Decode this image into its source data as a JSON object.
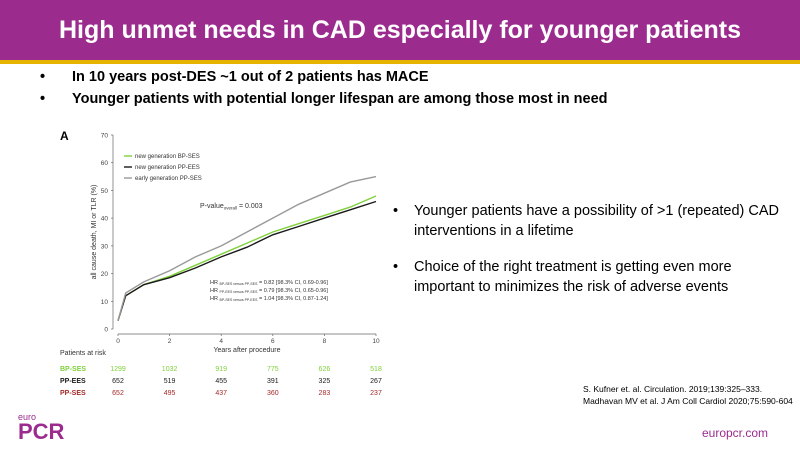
{
  "header": {
    "title": "High unmet needs  in CAD especially for younger patients"
  },
  "top_bullets": [
    "In 10 years post-DES ~1 out of 2 patients has MACE",
    "Younger patients with potential longer lifespan are among those most in need"
  ],
  "right_bullets": [
    "Younger patients have a possibility of >1 (repeated) CAD interventions in a lifetime",
    "Choice of the right treatment is getting even more important to minimizes the risk of adverse events"
  ],
  "bullet_glyph": "•",
  "chart_data": {
    "type": "line",
    "panel_label": "A",
    "xlabel": "Years after procedure",
    "ylabel": "all cause death, MI or TLR (%)",
    "x": [
      0,
      0.3,
      1,
      2,
      3,
      4,
      5,
      6,
      7,
      8,
      9,
      10
    ],
    "xlim": [
      0,
      10
    ],
    "ylim": [
      0,
      70
    ],
    "xticks": [
      0,
      2,
      4,
      6,
      8,
      10
    ],
    "yticks": [
      0,
      10,
      20,
      30,
      40,
      50,
      60,
      70
    ],
    "legend_position": "top-left",
    "series": [
      {
        "name": "new generation BP-SES",
        "color": "#7fd13b",
        "values": [
          3,
          12,
          16,
          19,
          23,
          27,
          31,
          35,
          38,
          41,
          44,
          48
        ]
      },
      {
        "name": "new generation PP-EES",
        "color": "#1a1a1a",
        "values": [
          3,
          12,
          16,
          18.5,
          22,
          26,
          29.5,
          34,
          37,
          40,
          43,
          46
        ]
      },
      {
        "name": "early generation PP-SES",
        "color": "#999999",
        "values": [
          3,
          13,
          17,
          21,
          26,
          30,
          35,
          40,
          45,
          49,
          53,
          55
        ]
      }
    ],
    "annotations": {
      "pvalue_main": "P-value",
      "pvalue_sub": "overall",
      "pvalue_rest": " = 0.003",
      "hr_lines": [
        {
          "main": "HR ",
          "sub": "BP-SES versus PP-SES",
          "rest": " = 0.82 [98.3% CI, 0.69-0.96]"
        },
        {
          "main": "HR ",
          "sub": "PP-EES versus PP-SES",
          "rest": " = 0.79 [98.3% CI, 0.65-0.96]"
        },
        {
          "main": "HR ",
          "sub": "BP-SES versus PP-EES",
          "rest": " = 1.04 [98.3% CI, 0.87-1.24]"
        }
      ]
    },
    "patients_at_risk": {
      "title": "Patients at risk",
      "rows": [
        {
          "label": "BP-SES",
          "color": "#7fd13b",
          "values": [
            "1299",
            "1032",
            "919",
            "775",
            "626",
            "518"
          ]
        },
        {
          "label": "PP-EES",
          "color": "#1a1a1a",
          "values": [
            "652",
            "519",
            "455",
            "391",
            "325",
            "267"
          ]
        },
        {
          "label": "PP-SES",
          "color": "#a52a2a",
          "values": [
            "652",
            "495",
            "437",
            "360",
            "283",
            "237"
          ]
        }
      ]
    }
  },
  "references": [
    "S. Kufner et. al. Circulation. 2019;139:325–333.",
    "Madhavan MV et al. J Am Coll Cardiol 2020;75:590-604"
  ],
  "logo": {
    "small": "euro",
    "big": "PCR"
  },
  "site": "europcr.com"
}
